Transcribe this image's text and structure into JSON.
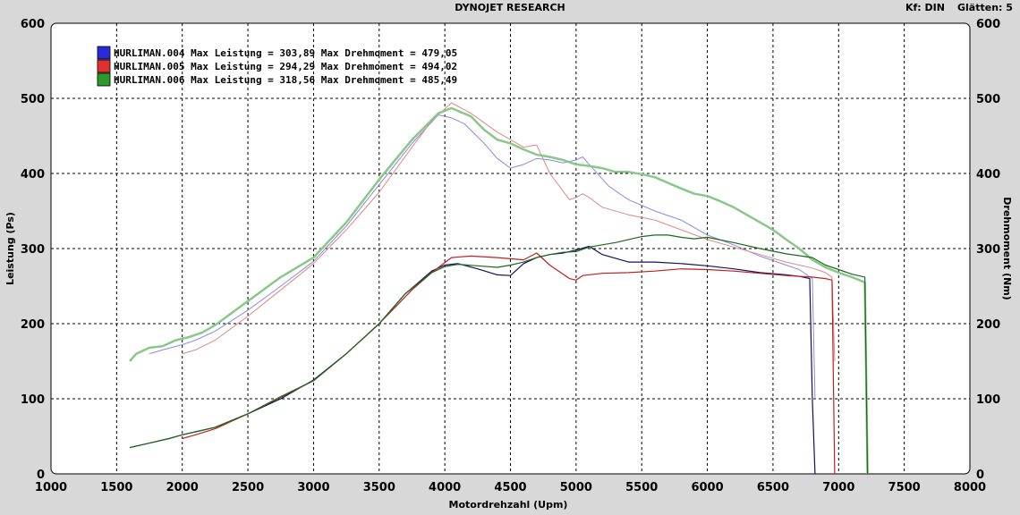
{
  "header": {
    "title": "DYNOJET RESEARCH",
    "kf_label": "Kf: DIN",
    "smoothing_label": "Glätten: 5"
  },
  "chart_data": {
    "type": "line",
    "title": "DYNOJET RESEARCH",
    "xlabel": "Motordrehzahl (Upm)",
    "ylabel": "Leistung (Ps)",
    "y2label": "Drehmoment (Nm)",
    "xlim": [
      1000,
      8000
    ],
    "ylim": [
      0,
      600
    ],
    "y2lim": [
      0,
      600
    ],
    "xticks": [
      "1000",
      "1500",
      "2000",
      "2500",
      "3000",
      "3500",
      "4000",
      "4500",
      "5000",
      "5500",
      "6000",
      "6500",
      "7000",
      "7500",
      "8000"
    ],
    "yticks": [
      "0",
      "100",
      "200",
      "300",
      "400",
      "500",
      "600"
    ],
    "y2ticks": [
      "0",
      "100",
      "200",
      "300",
      "400",
      "500",
      "600"
    ],
    "grid": true,
    "legend_position": "top-left",
    "legend": [
      {
        "text": "HURLIMAN.004 Max Leistung = 303,89 Max Drehmoment = 479,05",
        "color": "#2a2ad8"
      },
      {
        "text": "HURLIMAN.005 Max Leistung = 294,29 Max Drehmoment = 494,02",
        "color": "#e03030"
      },
      {
        "text": "HURLIMAN.006 Max Leistung = 318,56 Max Drehmoment = 485,49",
        "color": "#2a9a2a"
      }
    ],
    "series": [
      {
        "run": "HURLIMAN.004",
        "quantity": "Drehmoment",
        "color": "#8a8ae0",
        "width": 1,
        "x": [
          1750,
          1850,
          2000,
          2100,
          2250,
          2500,
          2750,
          3000,
          3250,
          3500,
          3750,
          3950,
          4050,
          4150,
          4300,
          4400,
          4500,
          4600,
          4700,
          4800,
          4900,
          5000,
          5050,
          5100,
          5250,
          5400,
          5600,
          5800,
          6000,
          6200,
          6400,
          6600,
          6700,
          6800,
          6820
        ],
        "y": [
          160,
          165,
          172,
          178,
          190,
          218,
          250,
          283,
          330,
          385,
          440,
          478,
          474,
          466,
          440,
          420,
          407,
          412,
          420,
          418,
          414,
          418,
          422,
          412,
          383,
          365,
          350,
          338,
          318,
          305,
          290,
          278,
          272,
          260,
          100
        ]
      },
      {
        "run": "HURLIMAN.004",
        "quantity": "Leistung",
        "color": "#101060",
        "width": 1.2,
        "x": [
          1600,
          1750,
          1900,
          2000,
          2100,
          2250,
          2500,
          2750,
          3000,
          3250,
          3500,
          3700,
          3900,
          4000,
          4100,
          4250,
          4400,
          4500,
          4600,
          4700,
          4800,
          4900,
          5000,
          5100,
          5200,
          5400,
          5600,
          5800,
          6000,
          6200,
          6400,
          6600,
          6700,
          6780,
          6800,
          6820
        ],
        "y": [
          35,
          41,
          47,
          52,
          56,
          62,
          80,
          100,
          125,
          160,
          200,
          240,
          270,
          278,
          280,
          273,
          265,
          264,
          280,
          288,
          292,
          294,
          298,
          303,
          292,
          282,
          282,
          280,
          277,
          273,
          268,
          265,
          263,
          260,
          100,
          0
        ]
      },
      {
        "run": "HURLIMAN.005",
        "quantity": "Drehmoment",
        "color": "#e08888",
        "width": 1,
        "x": [
          2000,
          2100,
          2250,
          2500,
          2750,
          3000,
          3250,
          3500,
          3750,
          3900,
          4050,
          4200,
          4400,
          4600,
          4700,
          4800,
          4950,
          5000,
          5050,
          5100,
          5200,
          5400,
          5600,
          5800,
          6000,
          6200,
          6400,
          6600,
          6800,
          6900,
          6950,
          6970
        ],
        "y": [
          160,
          165,
          178,
          210,
          245,
          280,
          325,
          375,
          435,
          470,
          494,
          480,
          455,
          435,
          438,
          400,
          365,
          368,
          373,
          368,
          355,
          345,
          338,
          325,
          312,
          302,
          292,
          282,
          274,
          268,
          262,
          150
        ]
      },
      {
        "run": "HURLIMAN.005",
        "quantity": "Leistung",
        "color": "#c02020",
        "width": 1.2,
        "x": [
          2000,
          2100,
          2250,
          2500,
          2750,
          3000,
          3250,
          3500,
          3750,
          3900,
          4050,
          4200,
          4400,
          4600,
          4700,
          4800,
          4950,
          5000,
          5050,
          5200,
          5400,
          5600,
          5800,
          6000,
          6200,
          6400,
          6600,
          6800,
          6900,
          6950,
          6970
        ],
        "y": [
          47,
          52,
          60,
          80,
          103,
          124,
          160,
          200,
          245,
          268,
          288,
          290,
          288,
          285,
          294,
          278,
          260,
          258,
          264,
          267,
          268,
          270,
          273,
          272,
          270,
          267,
          264,
          262,
          260,
          258,
          0
        ]
      },
      {
        "run": "HURLIMAN.006",
        "quantity": "Drehmoment",
        "color": "#88c888",
        "width": 2.5,
        "x": [
          1600,
          1650,
          1750,
          1850,
          1950,
          2050,
          2150,
          2250,
          2500,
          2750,
          3000,
          3250,
          3500,
          3750,
          3950,
          4050,
          4200,
          4300,
          4400,
          4500,
          4600,
          4700,
          4800,
          4900,
          5000,
          5100,
          5200,
          5300,
          5400,
          5500,
          5600,
          5800,
          5900,
          6000,
          6100,
          6200,
          6300,
          6400,
          6500,
          6600,
          6700,
          6800,
          6900,
          7000,
          7100,
          7200,
          7220
        ],
        "y": [
          150,
          160,
          168,
          170,
          178,
          182,
          188,
          198,
          230,
          262,
          288,
          335,
          392,
          445,
          480,
          487,
          476,
          458,
          445,
          440,
          432,
          425,
          422,
          418,
          412,
          410,
          407,
          402,
          402,
          399,
          395,
          380,
          373,
          370,
          363,
          355,
          345,
          335,
          325,
          312,
          300,
          285,
          275,
          268,
          262,
          255,
          0
        ]
      },
      {
        "run": "HURLIMAN.006",
        "quantity": "Leistung",
        "color": "#1a6a1a",
        "width": 1.2,
        "x": [
          1600,
          1750,
          1900,
          2000,
          2100,
          2250,
          2500,
          2750,
          3000,
          3250,
          3500,
          3700,
          3900,
          4000,
          4100,
          4250,
          4400,
          4500,
          4600,
          4700,
          4800,
          4900,
          5000,
          5100,
          5200,
          5300,
          5400,
          5500,
          5600,
          5700,
          5800,
          5900,
          6000,
          6200,
          6400,
          6600,
          6800,
          6900,
          7000,
          7100,
          7200,
          7220
        ],
        "y": [
          35,
          41,
          47,
          52,
          56,
          62,
          80,
          102,
          124,
          160,
          200,
          240,
          268,
          276,
          279,
          277,
          275,
          278,
          282,
          288,
          292,
          295,
          296,
          302,
          305,
          308,
          312,
          316,
          318,
          318,
          315,
          313,
          315,
          308,
          300,
          293,
          288,
          278,
          272,
          266,
          262,
          0
        ]
      }
    ]
  }
}
